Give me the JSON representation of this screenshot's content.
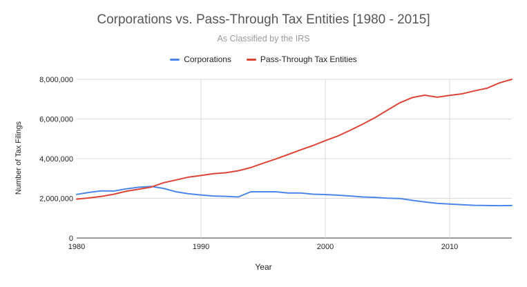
{
  "chart_data": {
    "type": "line",
    "title": "Corporations vs. Pass-Through Tax Entities [1980 - 2015]",
    "subtitle": "As Classified by the IRS",
    "xlabel": "Year",
    "ylabel": "Number of Tax Filings",
    "xlim": [
      1980,
      2015
    ],
    "ylim": [
      0,
      8000000
    ],
    "x_ticks": [
      1980,
      1990,
      2000,
      2010
    ],
    "x_tick_labels": [
      "1980",
      "1990",
      "2000",
      "2010"
    ],
    "y_ticks": [
      0,
      2000000,
      4000000,
      6000000,
      8000000
    ],
    "y_tick_labels": [
      "0",
      "2,000,000",
      "4,000,000",
      "6,000,000",
      "8,000,000"
    ],
    "grid": true,
    "legend_position": "top",
    "x": [
      1980,
      1981,
      1982,
      1983,
      1984,
      1985,
      1986,
      1987,
      1988,
      1989,
      1990,
      1991,
      1992,
      1993,
      1994,
      1995,
      1996,
      1997,
      1998,
      1999,
      2000,
      2001,
      2002,
      2003,
      2004,
      2005,
      2006,
      2007,
      2008,
      2009,
      2010,
      2011,
      2012,
      2013,
      2014,
      2015
    ],
    "series": [
      {
        "name": "Corporations",
        "color": "#4a86e8",
        "values": [
          2200000,
          2300000,
          2380000,
          2370000,
          2480000,
          2560000,
          2600000,
          2500000,
          2330000,
          2230000,
          2170000,
          2120000,
          2100000,
          2070000,
          2330000,
          2330000,
          2330000,
          2270000,
          2270000,
          2210000,
          2190000,
          2160000,
          2120000,
          2070000,
          2050000,
          2010000,
          1990000,
          1900000,
          1820000,
          1750000,
          1710000,
          1680000,
          1650000,
          1640000,
          1630000,
          1640000
        ]
      },
      {
        "name": "Pass-Through Tax Entities",
        "color": "#db4437",
        "values": [
          1960000,
          2020000,
          2100000,
          2210000,
          2360000,
          2460000,
          2570000,
          2790000,
          2930000,
          3070000,
          3150000,
          3240000,
          3290000,
          3390000,
          3550000,
          3770000,
          3980000,
          4210000,
          4440000,
          4660000,
          4910000,
          5140000,
          5430000,
          5740000,
          6070000,
          6450000,
          6820000,
          7080000,
          7200000,
          7100000,
          7190000,
          7270000,
          7420000,
          7550000,
          7820000,
          8000000
        ]
      }
    ]
  }
}
